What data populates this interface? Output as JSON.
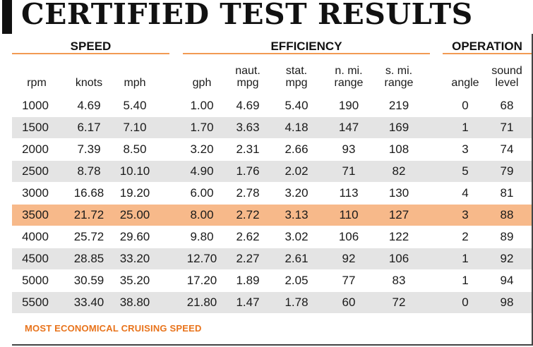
{
  "title": "CERTIFIED TEST RESULTS",
  "groups": {
    "speed": "SPEED",
    "efficiency": "EFFICIENCY",
    "operation": "OPERATION"
  },
  "headers": {
    "rpm": "rpm",
    "knots": "knots",
    "mph": "mph",
    "gph": "gph",
    "naut_mpg": "naut.\nmpg",
    "stat_mpg": "stat.\nmpg",
    "nmi_range": "n. mi.\nrange",
    "smi_range": "s. mi.\nrange",
    "angle": "angle",
    "sound_level": "sound\nlevel"
  },
  "rows": [
    [
      "1000",
      "4.69",
      "5.40",
      "1.00",
      "4.69",
      "5.40",
      "190",
      "219",
      "0",
      "68"
    ],
    [
      "1500",
      "6.17",
      "7.10",
      "1.70",
      "3.63",
      "4.18",
      "147",
      "169",
      "1",
      "71"
    ],
    [
      "2000",
      "7.39",
      "8.50",
      "3.20",
      "2.31",
      "2.66",
      "93",
      "108",
      "3",
      "74"
    ],
    [
      "2500",
      "8.78",
      "10.10",
      "4.90",
      "1.76",
      "2.02",
      "71",
      "82",
      "5",
      "79"
    ],
    [
      "3000",
      "16.68",
      "19.20",
      "6.00",
      "2.78",
      "3.20",
      "113",
      "130",
      "4",
      "81"
    ],
    [
      "3500",
      "21.72",
      "25.00",
      "8.00",
      "2.72",
      "3.13",
      "110",
      "127",
      "3",
      "88"
    ],
    [
      "4000",
      "25.72",
      "29.60",
      "9.80",
      "2.62",
      "3.02",
      "106",
      "122",
      "2",
      "89"
    ],
    [
      "4500",
      "28.85",
      "33.20",
      "12.70",
      "2.27",
      "2.61",
      "92",
      "106",
      "1",
      "92"
    ],
    [
      "5000",
      "30.59",
      "35.20",
      "17.20",
      "1.89",
      "2.05",
      "77",
      "83",
      "1",
      "94"
    ],
    [
      "5500",
      "33.40",
      "38.80",
      "21.80",
      "1.47",
      "1.78",
      "60",
      "72",
      "0",
      "98"
    ]
  ],
  "highlighted_row_rpm": "3500",
  "footnote": "MOST ECONOMICAL CRUISING SPEED",
  "colors": {
    "accent": "#f29a53",
    "highlight_row": "#f7b98a",
    "shaded_row": "#e4e4e4",
    "footnote_text": "#e8731b"
  }
}
